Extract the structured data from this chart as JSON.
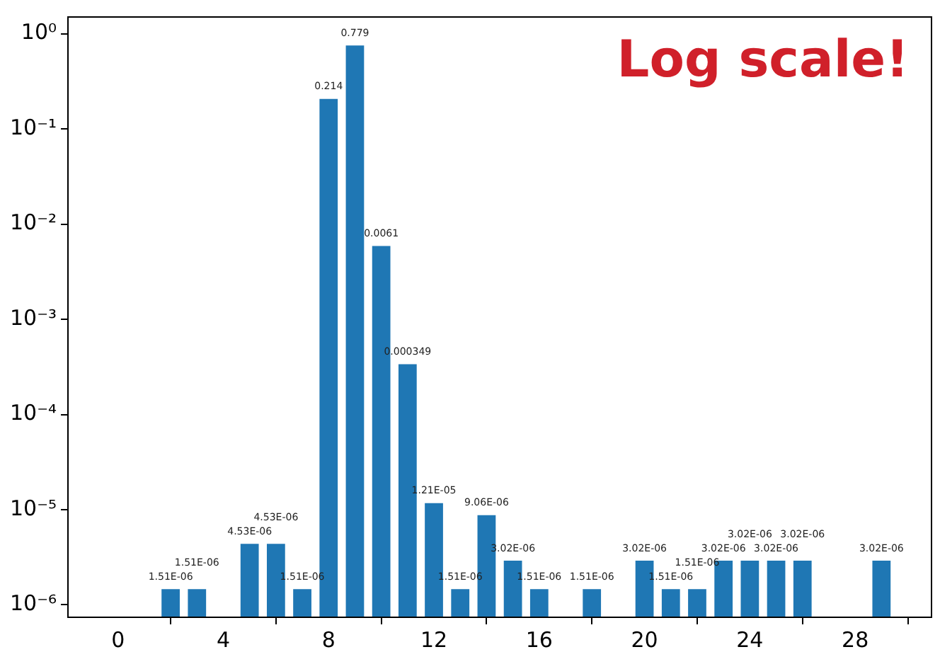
{
  "chart_data": {
    "type": "bar",
    "x": [
      2,
      3,
      5,
      6,
      7,
      8,
      9,
      10,
      11,
      12,
      13,
      14,
      15,
      16,
      18,
      20,
      21,
      22,
      23,
      24,
      25,
      26,
      29
    ],
    "values": [
      1.51e-06,
      1.51e-06,
      4.53e-06,
      4.53e-06,
      1.51e-06,
      0.214,
      0.779,
      0.0061,
      0.000349,
      1.21e-05,
      1.51e-06,
      9.06e-06,
      3.02e-06,
      1.51e-06,
      1.51e-06,
      3.02e-06,
      1.51e-06,
      1.51e-06,
      3.02e-06,
      3.02e-06,
      3.02e-06,
      3.02e-06,
      3.02e-06
    ],
    "value_labels": [
      "1.51E-06",
      "1.51E-06",
      "4.53E-06",
      "4.53E-06",
      "1.51E-06",
      "0.214",
      "0.779",
      "0.0061",
      "0.000349",
      "1.21E-05",
      "1.51E-06",
      "9.06E-06",
      "3.02E-06",
      "1.51E-06",
      "1.51E-06",
      "3.02E-06",
      "1.51E-06",
      "1.51E-06",
      "3.02E-06",
      "3.02E-06",
      "3.02E-06",
      "3.02E-06",
      "3.02E-06"
    ],
    "color": "#1f77b4",
    "log": "y",
    "xlim": [
      -1.9,
      30.9
    ],
    "xticks": [
      0,
      4,
      8,
      12,
      16,
      20,
      24,
      28
    ],
    "ylim": [
      7.4e-07,
      1.5
    ],
    "yticks": [
      {
        "value": 1e-06,
        "label": "10⁻⁶"
      },
      {
        "value": 1e-05,
        "label": "10⁻⁵"
      },
      {
        "value": 0.0001,
        "label": "10⁻⁴"
      },
      {
        "value": 0.001,
        "label": "10⁻³"
      },
      {
        "value": 0.01,
        "label": "10⁻²"
      },
      {
        "value": 0.1,
        "label": "10⁻¹"
      },
      {
        "value": 1,
        "label": "10⁰"
      }
    ],
    "grid": false,
    "legend": false,
    "annotations": [
      "Log scale!"
    ]
  }
}
